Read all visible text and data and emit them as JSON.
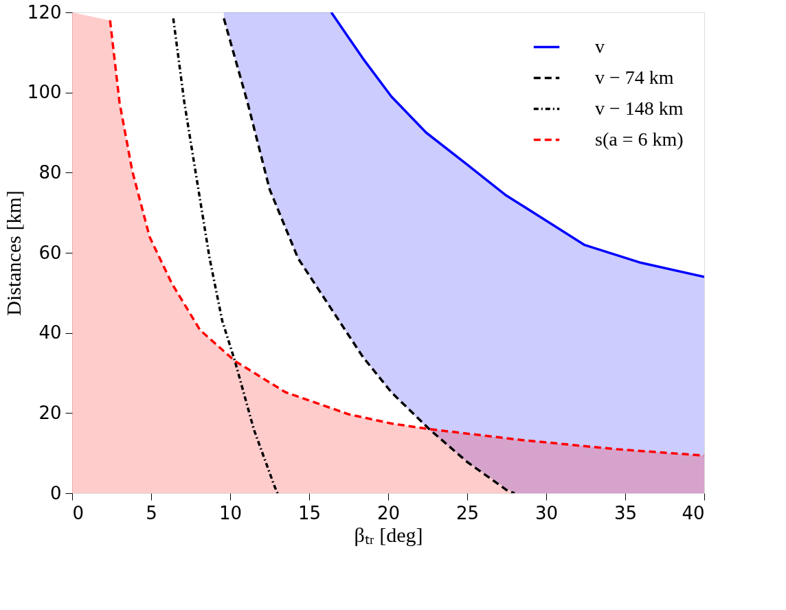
{
  "chart_data": {
    "type": "line",
    "xlabel": "βₜᵣ [deg]",
    "ylabel": "Distances [km]",
    "xlim": [
      0,
      40
    ],
    "xticks": [
      0,
      5,
      10,
      15,
      20,
      25,
      30,
      35,
      40
    ],
    "ylim": [
      0,
      120
    ],
    "yticks": [
      0,
      20,
      40,
      60,
      80,
      100,
      120
    ],
    "grid": false,
    "legend": "top right",
    "series": [
      {
        "name": "v",
        "color": "#0000ff",
        "line_style": "solid",
        "x": [
          9.6,
          11.1,
          12.5,
          14.3,
          16.4,
          18.4,
          20.2,
          22.4,
          25,
          27.4,
          28,
          30,
          32.4,
          36,
          40
        ],
        "values": [
          null,
          null,
          null,
          null,
          120,
          108.5,
          99,
          90,
          82,
          74.5,
          73,
          68,
          62,
          57.5,
          54
        ],
        "upper": [
          120,
          120,
          120,
          120,
          120,
          108.5,
          99,
          90,
          82,
          74.5,
          73,
          68,
          62,
          57.5,
          54
        ],
        "lower": [
          118.5,
          97.5,
          75.8,
          58.6,
          46,
          34,
          25.2,
          16.5,
          7.8,
          1.4,
          0,
          0,
          0,
          0,
          0
        ]
      },
      {
        "name": "v − 74 km",
        "color": "#000000",
        "line_style": "dashed",
        "x": [
          9.6,
          11.1,
          12.5,
          14.3,
          16.9,
          18.4,
          20.2,
          22.6,
          25,
          27.6,
          28
        ],
        "values": [
          118.5,
          97.5,
          75.8,
          58.6,
          43,
          34,
          25.2,
          16,
          7.8,
          0.5,
          0
        ]
      },
      {
        "name": "v − 148 km",
        "color": "#000000",
        "line_style": "dotted",
        "x": [
          6.4,
          7.1,
          7.9,
          8.7,
          9.5,
          10.3,
          11.5,
          12.8,
          13
        ],
        "values": [
          118.5,
          97.5,
          78,
          58.6,
          43,
          33,
          15.9,
          1.8,
          0
        ]
      },
      {
        "name": "s(a = 6 km)",
        "color": "#ff0000",
        "line_style": "dashed",
        "x": [
          0,
          2.4,
          3.0,
          3.8,
          4.9,
          6.3,
          8.1,
          10.3,
          13.5,
          17.5,
          20.2,
          22.6,
          28.4,
          34.4,
          40
        ],
        "values": [
          null,
          118,
          97.5,
          80.5,
          64,
          52.4,
          40.7,
          33,
          25.2,
          19.7,
          17.4,
          16,
          13.3,
          11,
          9.4
        ],
        "upper": [
          120,
          118,
          97.5,
          80.5,
          64,
          52.4,
          40.7,
          33,
          25.2,
          19.7,
          17.4,
          16,
          13.3,
          11,
          9.4
        ],
        "lower": [
          0,
          0,
          0,
          0,
          0,
          0,
          0,
          0,
          0,
          0,
          0,
          0,
          0,
          0,
          0
        ]
      }
    ]
  }
}
